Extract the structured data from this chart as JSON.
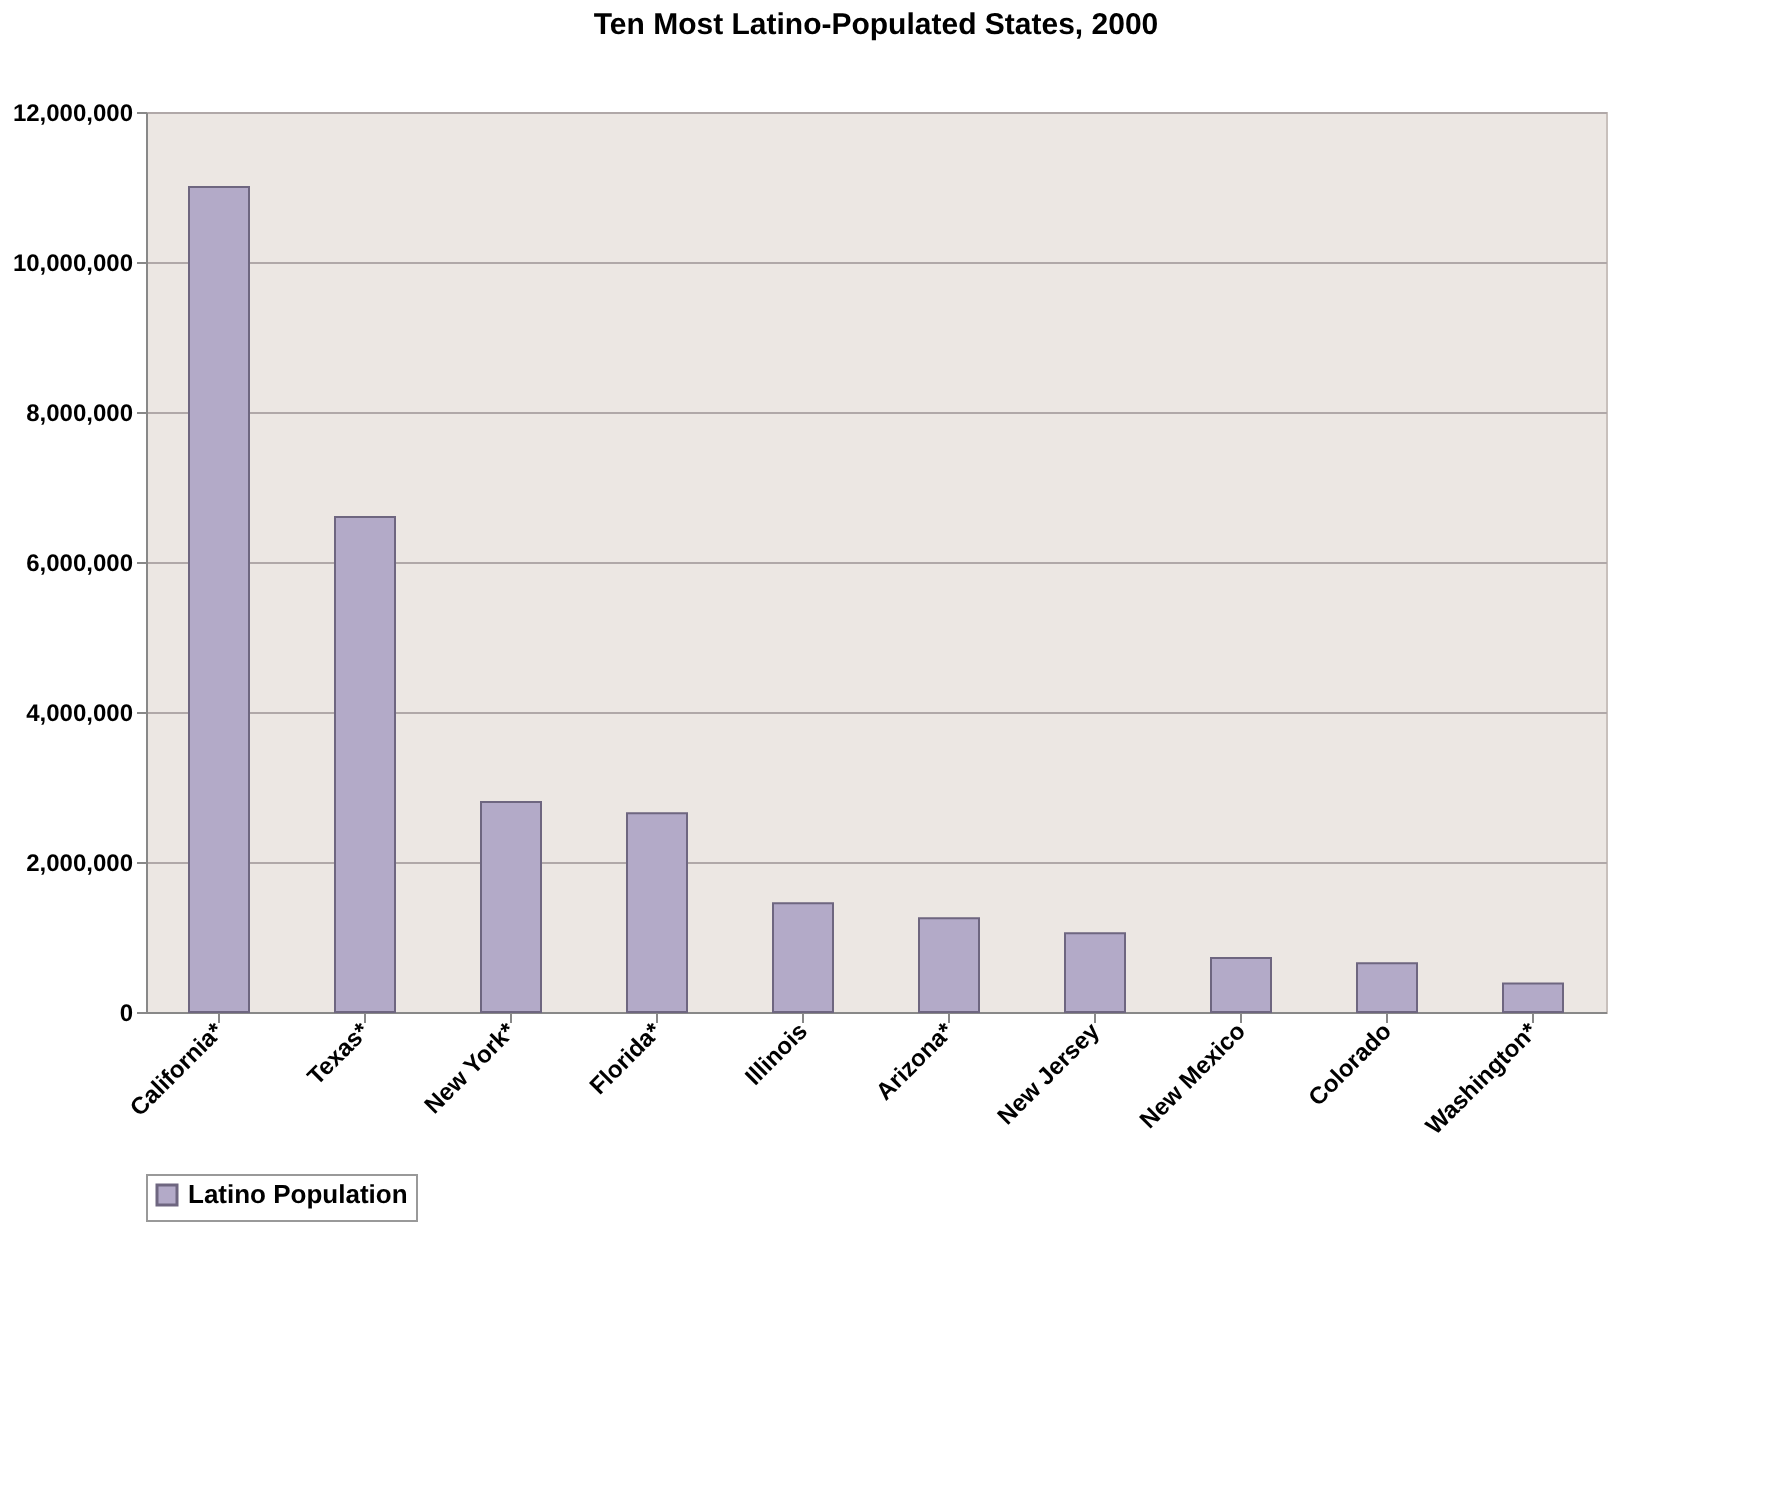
{
  "chart_data": {
    "type": "bar",
    "title": "Ten Most Latino-Populated States, 2000",
    "categories": [
      "California*",
      "Texas*",
      "New York*",
      "Florida*",
      "Illinois",
      "Arizona*",
      "New Jersey",
      "New Mexico",
      "Colorado",
      "Washington*"
    ],
    "series": [
      {
        "name": "Latino Population",
        "color": "#b3aac8",
        "values": [
          11000000,
          6600000,
          2800000,
          2650000,
          1450000,
          1250000,
          1050000,
          720000,
          650000,
          380000
        ]
      }
    ],
    "ylim": [
      0,
      12000000
    ],
    "yticks": [
      {
        "value": 0,
        "label": "0"
      },
      {
        "value": 2000000,
        "label": "2,000,000"
      },
      {
        "value": 4000000,
        "label": "4,000,000"
      },
      {
        "value": 6000000,
        "label": "6,000,000"
      },
      {
        "value": 8000000,
        "label": "8,000,000"
      },
      {
        "value": 10000000,
        "label": "10,000,000"
      },
      {
        "value": 12000000,
        "label": "12,000,000"
      }
    ],
    "grid": "y",
    "legend": "bottom"
  }
}
